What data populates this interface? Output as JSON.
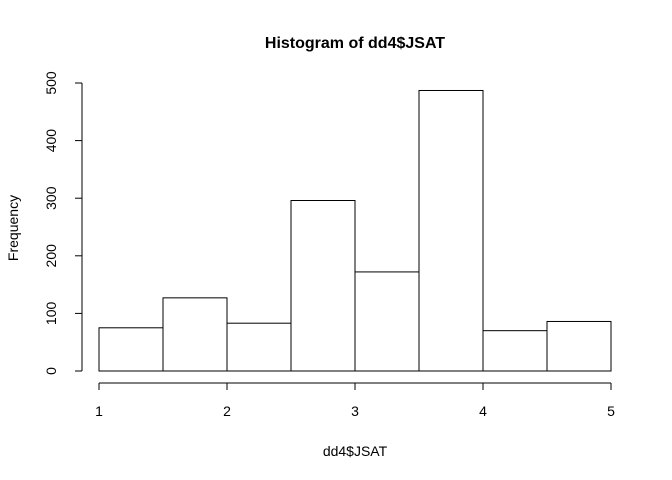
{
  "chart_data": {
    "type": "bar",
    "title": "Histogram of dd4$JSAT",
    "xlabel": "dd4$JSAT",
    "ylabel": "Frequency",
    "bins": [
      {
        "start": 1.0,
        "end": 1.5,
        "count": 75
      },
      {
        "start": 1.5,
        "end": 2.0,
        "count": 127
      },
      {
        "start": 2.0,
        "end": 2.5,
        "count": 83
      },
      {
        "start": 2.5,
        "end": 3.0,
        "count": 296
      },
      {
        "start": 3.0,
        "end": 3.5,
        "count": 172
      },
      {
        "start": 3.5,
        "end": 4.0,
        "count": 487
      },
      {
        "start": 4.0,
        "end": 4.5,
        "count": 70
      },
      {
        "start": 4.5,
        "end": 5.0,
        "count": 86
      }
    ],
    "xticks": [
      "1",
      "2",
      "3",
      "4",
      "5"
    ],
    "yticks": [
      "0",
      "100",
      "200",
      "300",
      "400",
      "500"
    ],
    "xlim": [
      1,
      5
    ],
    "ylim": [
      0,
      500
    ],
    "grid": false,
    "bar_fill": "#ffffff",
    "bar_stroke": "#000000"
  }
}
